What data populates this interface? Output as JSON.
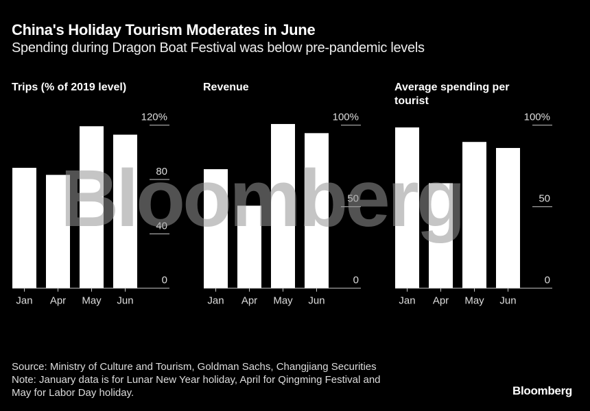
{
  "title": "China's Holiday Tourism Moderates in June",
  "subtitle": "Spending during Dragon Boat Festival was below pre-pandemic levels",
  "watermark": "Bloomberg",
  "chart_data": [
    {
      "type": "bar",
      "title": "Trips (% of 2019 level)",
      "categories": [
        "Jan",
        "Apr",
        "May",
        "Jun"
      ],
      "values": [
        88.6,
        83.4,
        119.2,
        113
      ],
      "ylim": [
        0,
        120
      ],
      "yticks": [
        "0",
        "40",
        "80",
        "120%"
      ],
      "ytick_values": [
        0,
        40,
        80,
        120
      ],
      "grid": true
    },
    {
      "type": "bar",
      "title": "Revenue",
      "categories": [
        "Jan",
        "Apr",
        "May",
        "Jun"
      ],
      "values": [
        73,
        50.6,
        100.7,
        95.1
      ],
      "ylim": [
        0,
        100
      ],
      "yticks": [
        "0",
        "50",
        "100%"
      ],
      "ytick_values": [
        0,
        50,
        100
      ],
      "grid": true
    },
    {
      "type": "bar",
      "title": "Average spending per tourist",
      "categories": [
        "Jan",
        "Apr",
        "May",
        "Jun"
      ],
      "values": [
        98.6,
        64.4,
        89.7,
        86
      ],
      "ylim": [
        0,
        100
      ],
      "yticks": [
        "0",
        "50",
        "100%"
      ],
      "ytick_values": [
        0,
        50,
        100
      ],
      "grid": true
    }
  ],
  "colors": {
    "bar": "#ffffff",
    "background": "#000000",
    "grid": "#cccccc"
  },
  "footer": {
    "source": "Source: Ministry of Culture and Tourism, Goldman Sachs, Changjiang Securities",
    "note1": "Note: January data is for Lunar New Year holiday, April for Qingming Festival and",
    "note2": "May for Labor Day holiday.",
    "brand": "Bloomberg"
  }
}
